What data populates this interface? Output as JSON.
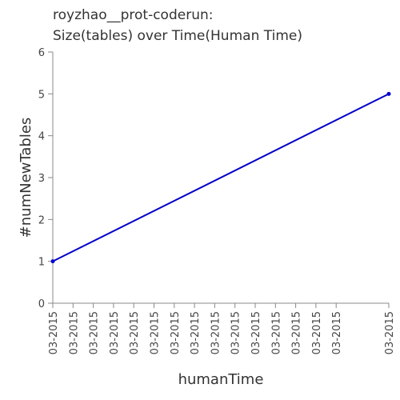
{
  "chart_data": {
    "type": "line",
    "title_lines": [
      "royzhao__prot-coderun:",
      "Size(tables) over Time(Human Time)"
    ],
    "xlabel": "humanTime",
    "ylabel": "#numNewTables",
    "x_tick_labels": [
      "03-2015",
      "03-2015",
      "03-2015",
      "03-2015",
      "03-2015",
      "03-2015",
      "03-2015",
      "03-2015",
      "03-2015",
      "03-2015",
      "03-2015",
      "03-2015",
      "03-2015",
      "03-2015",
      "03-2015",
      "03-2015"
    ],
    "ylim": [
      0,
      6
    ],
    "y_ticks": [
      0,
      1,
      2,
      3,
      4,
      5,
      6
    ],
    "grid": false,
    "series": [
      {
        "color": "#0000cc",
        "points": [
          {
            "x_fraction": 0,
            "y": 1
          },
          {
            "x_fraction": 1,
            "y": 5
          }
        ]
      }
    ]
  }
}
